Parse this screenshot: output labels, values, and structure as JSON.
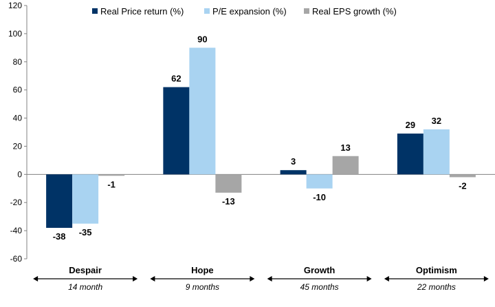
{
  "chart_data": {
    "type": "bar",
    "categories": [
      "Despair",
      "Hope",
      "Growth",
      "Optimism"
    ],
    "durations": [
      "14 month",
      "9 months",
      "45 months",
      "22 months"
    ],
    "series": [
      {
        "name": "Real Price return (%)",
        "color": "#003366",
        "values": [
          -38,
          62,
          3,
          29
        ]
      },
      {
        "name": "P/E expansion (%)",
        "color": "#a9d3f1",
        "values": [
          -35,
          90,
          -10,
          32
        ]
      },
      {
        "name": "Real EPS growth (%)",
        "color": "#a6a6a6",
        "values": [
          -1,
          -13,
          13,
          -2
        ]
      }
    ],
    "ylim": [
      -60,
      120
    ],
    "yticks": [
      -60,
      -40,
      -20,
      0,
      20,
      40,
      60,
      80,
      100,
      120
    ],
    "legend_position": "top",
    "grid": false
  }
}
